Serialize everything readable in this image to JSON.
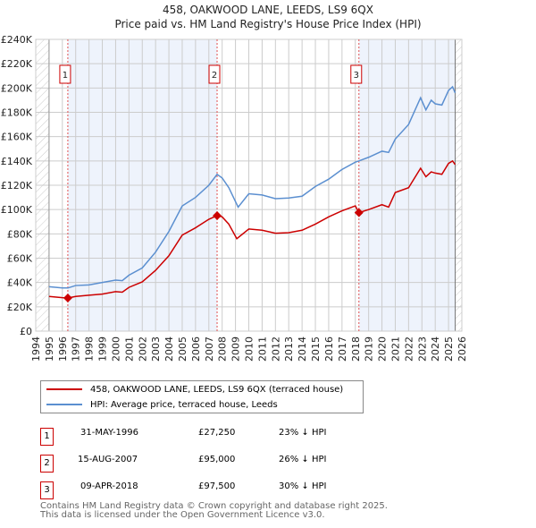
{
  "title": "458, OAKWOOD LANE, LEEDS, LS9 6QX",
  "subtitle": "Price paid vs. HM Land Registry's House Price Index (HPI)",
  "chart_data": {
    "type": "line",
    "title": "458, OAKWOOD LANE, LEEDS, LS9 6QX — Price paid vs. HM Land Registry's House Price Index (HPI)",
    "xlim": [
      1994,
      2026
    ],
    "ylim": [
      0,
      240000
    ],
    "x_ticks": [
      "1994",
      "1995",
      "1996",
      "1997",
      "1998",
      "1999",
      "2000",
      "2001",
      "2002",
      "2003",
      "2004",
      "2005",
      "2006",
      "2007",
      "2008",
      "2009",
      "2010",
      "2011",
      "2012",
      "2013",
      "2014",
      "2015",
      "2016",
      "2017",
      "2018",
      "2019",
      "2020",
      "2021",
      "2022",
      "2023",
      "2024",
      "2025",
      "2026"
    ],
    "y_ticks": [
      {
        "v": 0,
        "label": "£0"
      },
      {
        "v": 20000,
        "label": "£20K"
      },
      {
        "v": 40000,
        "label": "£40K"
      },
      {
        "v": 60000,
        "label": "£60K"
      },
      {
        "v": 80000,
        "label": "£80K"
      },
      {
        "v": 100000,
        "label": "£100K"
      },
      {
        "v": 120000,
        "label": "£120K"
      },
      {
        "v": 140000,
        "label": "£140K"
      },
      {
        "v": 160000,
        "label": "£160K"
      },
      {
        "v": 180000,
        "label": "£180K"
      },
      {
        "v": 200000,
        "label": "£200K"
      },
      {
        "v": 220000,
        "label": "£220K"
      },
      {
        "v": 240000,
        "label": "£240K"
      }
    ],
    "grid": true,
    "series": [
      {
        "name": "458, OAKWOOD LANE, LEEDS, LS9 6QX (terraced house)",
        "color": "#cc0000",
        "x": [
          1995,
          1996,
          1996.41,
          1997,
          1998,
          1999,
          2000,
          2000.5,
          2001,
          2002,
          2003,
          2004,
          2005,
          2006,
          2007,
          2007.62,
          2008,
          2008.5,
          2009.1,
          2010,
          2011,
          2012,
          2013,
          2014,
          2015,
          2016,
          2017,
          2018,
          2018.27,
          2019,
          2020,
          2020.5,
          2021,
          2022,
          2022.9,
          2023.3,
          2023.7,
          2024,
          2024.5,
          2025,
          2025.3,
          2025.5
        ],
        "y": [
          28500,
          27500,
          27250,
          28500,
          29500,
          30500,
          32500,
          32000,
          36000,
          40500,
          50000,
          62000,
          79000,
          85000,
          92000,
          95000,
          94000,
          88000,
          76000,
          84000,
          83000,
          80500,
          81000,
          83000,
          88000,
          94000,
          99000,
          103000,
          97500,
          100000,
          104000,
          102000,
          114000,
          118000,
          134000,
          127000,
          131000,
          130000,
          129000,
          138000,
          140000,
          137000
        ]
      },
      {
        "name": "HPI: Average price, terraced house, Leeds",
        "color": "#5b8fd0",
        "x": [
          1995,
          1996,
          1996.41,
          1997,
          1998,
          1999,
          2000,
          2000.5,
          2001,
          2002,
          2003,
          2004,
          2005,
          2006,
          2007,
          2007.62,
          2008,
          2008.5,
          2009.2,
          2010,
          2011,
          2012,
          2013,
          2014,
          2015,
          2016,
          2017,
          2018,
          2018.27,
          2019,
          2020,
          2020.5,
          2021,
          2022,
          2022.9,
          2023.3,
          2023.7,
          2024,
          2024.5,
          2025,
          2025.3,
          2025.5
        ],
        "y": [
          36500,
          35500,
          35500,
          37500,
          38000,
          40000,
          42000,
          41500,
          46000,
          52000,
          65000,
          82000,
          103000,
          110000,
          120000,
          129000,
          126000,
          118000,
          102000,
          113000,
          112000,
          109000,
          109500,
          111000,
          119000,
          125000,
          133000,
          139000,
          140000,
          143000,
          148000,
          147000,
          158000,
          170000,
          192000,
          182000,
          190000,
          187000,
          186000,
          198000,
          201000,
          196000
        ]
      }
    ],
    "sales": [
      {
        "n": "1",
        "x": 1996.41,
        "y": 27250,
        "date": "31-MAY-1996",
        "price": "£27,250",
        "hpi": "23% ↓ HPI"
      },
      {
        "n": "2",
        "x": 2007.62,
        "y": 95000,
        "date": "15-AUG-2007",
        "price": "£95,000",
        "hpi": "26% ↓ HPI"
      },
      {
        "n": "3",
        "x": 2018.27,
        "y": 97500,
        "date": "09-APR-2018",
        "price": "£97,500",
        "hpi": "30% ↓ HPI"
      }
    ],
    "data_range": [
      1995,
      2025.5
    ],
    "legend_placement": "below"
  },
  "footer": [
    "Contains HM Land Registry data © Crown copyright and database right 2025.",
    "This data is licensed under the Open Government Licence v3.0."
  ]
}
